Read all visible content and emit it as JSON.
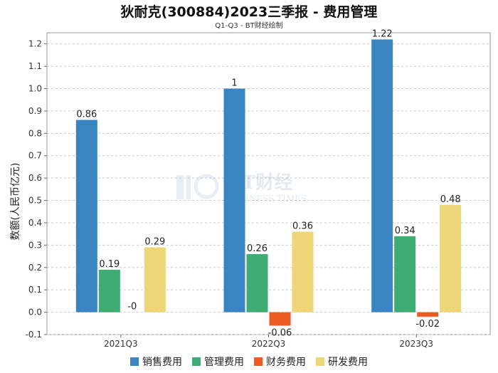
{
  "chart_data": {
    "type": "bar",
    "title": "狄耐克(300884)2023三季报 - 费用管理",
    "subtitle": "Q1-Q3 - BT财经绘制",
    "ylabel": "数额(人民币亿元)",
    "xlabel": "",
    "categories": [
      "2021Q3",
      "2022Q3",
      "2023Q3"
    ],
    "ylim": [
      -0.1,
      1.25
    ],
    "yticks": [
      "-0.1",
      "0.0",
      "0.1",
      "0.2",
      "0.3",
      "0.4",
      "0.5",
      "0.6",
      "0.7",
      "0.8",
      "0.9",
      "1.0",
      "1.1",
      "1.2"
    ],
    "grid": true,
    "legend_position": "bottom",
    "series": [
      {
        "name": "销售费用",
        "color": "#3a84c2",
        "values": [
          0.86,
          1,
          1.22
        ],
        "labels": [
          "0.86",
          "1",
          "1.22"
        ]
      },
      {
        "name": "管理费用",
        "color": "#3fad73",
        "values": [
          0.19,
          0.26,
          0.34
        ],
        "labels": [
          "0.19",
          "0.26",
          "0.34"
        ]
      },
      {
        "name": "财务费用",
        "color": "#ee5a24",
        "values": [
          0,
          -0.06,
          -0.02
        ],
        "labels": [
          "-0",
          "-0.06",
          "-0.02"
        ]
      },
      {
        "name": "研发费用",
        "color": "#ecd677",
        "values": [
          0.29,
          0.36,
          0.48
        ],
        "labels": [
          "0.29",
          "0.36",
          "0.48"
        ]
      }
    ],
    "watermark": "BT财经 BUSINESS TIMES"
  }
}
